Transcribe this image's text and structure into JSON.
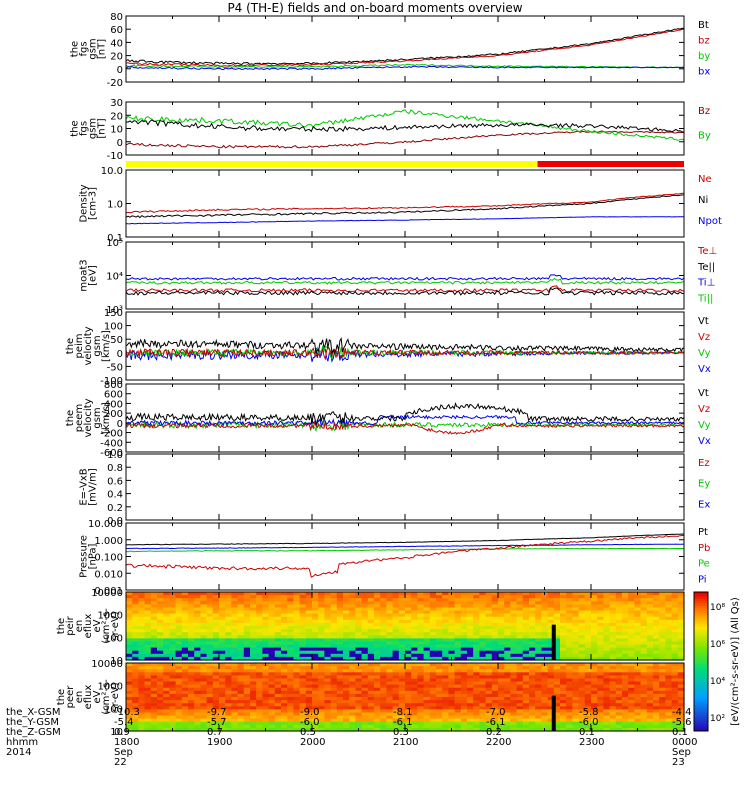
{
  "title": "P4 (TH-E) fields and on-board moments overview",
  "colors": {
    "black": "#000000",
    "red": "#cc0000",
    "green": "#00c800",
    "blue": "#0000ee",
    "yellow": "#ffff00",
    "darkred": "#8b0000"
  },
  "panels": [
    {
      "id": "fgs-dsl",
      "ylabel": [
        "the",
        "fgs",
        "gsm",
        "[nT]"
      ],
      "yticks": [
        "80",
        "60",
        "40",
        "20",
        "0",
        "-20"
      ],
      "ylim": [
        -20,
        80
      ],
      "scale": "linear",
      "legend": [
        {
          "text": "Bt",
          "color": "#000000"
        },
        {
          "text": "bz",
          "color": "#cc0000"
        },
        {
          "text": "by",
          "color": "#00c800"
        },
        {
          "text": "bx",
          "color": "#0000ee"
        }
      ]
    },
    {
      "id": "fgs-gsm",
      "ylabel": [
        "the",
        "fgs",
        "gsm",
        "[nT]"
      ],
      "yticks": [
        "30",
        "20",
        "10",
        "0",
        "-10"
      ],
      "ylim": [
        -15,
        30
      ],
      "scale": "linear",
      "legend": [
        {
          "text": "Bz",
          "color": "#8b0000"
        },
        {
          "text": "By",
          "color": "#00c800"
        }
      ]
    },
    {
      "id": "density",
      "ylabel": [
        "Density",
        "[cm-3]"
      ],
      "yticks": [
        "10.0",
        "1.0",
        "0.1"
      ],
      "ylim": [
        0.1,
        10
      ],
      "scale": "log",
      "legend": [
        {
          "text": "Ne",
          "color": "#cc0000"
        },
        {
          "text": "Ni",
          "color": "#000000"
        },
        {
          "text": "Npot",
          "color": "#0000ee"
        }
      ]
    },
    {
      "id": "temperature",
      "ylabel": [
        "moat3",
        "[eV]"
      ],
      "yticks": [
        "10⁵",
        "10⁴",
        "10³"
      ],
      "ylim": [
        500,
        100000
      ],
      "scale": "log",
      "legend": [
        {
          "text": "Te⊥",
          "color": "#cc0000"
        },
        {
          "text": "Te||",
          "color": "#000000"
        },
        {
          "text": "Ti⊥",
          "color": "#0000ee"
        },
        {
          "text": "Ti||",
          "color": "#00c800"
        }
      ]
    },
    {
      "id": "peim-velocity",
      "ylabel": [
        "the",
        "peim",
        "velocity",
        "gsm",
        "[km/s]"
      ],
      "yticks": [
        "150",
        "100",
        "50",
        "0",
        "-50",
        "-100"
      ],
      "ylim": [
        -100,
        150
      ],
      "scale": "linear",
      "legend": [
        {
          "text": "Vt",
          "color": "#000000"
        },
        {
          "text": "Vz",
          "color": "#cc0000"
        },
        {
          "text": "Vy",
          "color": "#00c800"
        },
        {
          "text": "Vx",
          "color": "#0000ee"
        }
      ]
    },
    {
      "id": "peem-velocity",
      "ylabel": [
        "the",
        "peem",
        "velocity",
        "gsm",
        "[km/s]"
      ],
      "yticks": [
        "800",
        "600",
        "400",
        "200",
        "0",
        "-200",
        "-400",
        "-600"
      ],
      "ylim": [
        -600,
        800
      ],
      "scale": "linear",
      "legend": [
        {
          "text": "Vt",
          "color": "#000000"
        },
        {
          "text": "Vz",
          "color": "#cc0000"
        },
        {
          "text": "Vy",
          "color": "#00c800"
        },
        {
          "text": "Vx",
          "color": "#0000ee"
        }
      ]
    },
    {
      "id": "efield",
      "ylabel": [
        "E=-VxB",
        "[mV/m]"
      ],
      "yticks": [
        "1.0",
        "0.8",
        "0.6",
        "0.4",
        "0.2",
        "0.0"
      ],
      "ylim": [
        0,
        1
      ],
      "scale": "linear",
      "legend": [
        {
          "text": "Ez",
          "color": "#cc0000"
        },
        {
          "text": "Ey",
          "color": "#00c800"
        },
        {
          "text": "Ex",
          "color": "#0000ee"
        }
      ]
    },
    {
      "id": "pressure",
      "ylabel": [
        "Pressure",
        "[nPa]"
      ],
      "yticks": [
        "10.000",
        "1.000",
        "0.100",
        "0.010",
        "0.001"
      ],
      "ylim": [
        0.001,
        10
      ],
      "scale": "log",
      "legend": [
        {
          "text": "Pt",
          "color": "#000000"
        },
        {
          "text": "Pb",
          "color": "#cc0000"
        },
        {
          "text": "Pe",
          "color": "#00c800"
        },
        {
          "text": "Pi",
          "color": "#0000ee"
        }
      ]
    },
    {
      "id": "peir-spec",
      "ylabel": [
        "the",
        "peir",
        "en",
        "eflux",
        "eV",
        "(cm²-s-",
        "sr-eV)"
      ],
      "yticks": [
        "10000",
        "1000",
        "100",
        "10"
      ],
      "ylim": [
        5,
        30000
      ],
      "scale": "log"
    },
    {
      "id": "peer-spec",
      "ylabel": [
        "the",
        "peer",
        "en",
        "eflux",
        "eV",
        "(cm²-s-",
        "sr-eV)"
      ],
      "yticks": [
        "10000",
        "1000",
        "100",
        "10"
      ],
      "ylim": [
        5,
        30000
      ],
      "scale": "log"
    }
  ],
  "colorbar": {
    "label": "[eV/(cm²-s-sr-eV)] (All Qs)",
    "ticks": [
      "10⁸",
      "10⁶",
      "10⁴",
      "10²"
    ]
  },
  "mode_bar": {
    "segments": [
      {
        "from": "1800",
        "to": "2243",
        "color": "#ffff00"
      },
      {
        "from": "2243",
        "to": "0000",
        "color": "#ee0000"
      }
    ]
  },
  "footer": {
    "rows": [
      {
        "label": "the_X-GSM",
        "values": [
          "-10.3",
          "-9.7",
          "-9.0",
          "-8.1",
          "-7.0",
          "-5.8",
          "-4.4"
        ]
      },
      {
        "label": "the_Y-GSM",
        "values": [
          "-5.4",
          "-5.7",
          "-6.0",
          "-6.1",
          "-6.1",
          "-6.0",
          "-5.6"
        ]
      },
      {
        "label": "the_Z-GSM",
        "values": [
          "0.9",
          "0.7",
          "0.5",
          "0.3",
          "0.2",
          "0.1",
          "0.1"
        ]
      },
      {
        "label": "hhmm",
        "values": [
          "1800",
          "1900",
          "2000",
          "2100",
          "2200",
          "2300",
          "0000"
        ]
      }
    ],
    "year": "2014",
    "dates": [
      "Sep 22",
      "Sep 23"
    ]
  },
  "chart_data": {
    "type": "line",
    "title": "P4 (TH-E) fields and on-board moments overview",
    "x": [
      "1800",
      "1900",
      "2000",
      "2100",
      "2200",
      "2300",
      "0000"
    ],
    "xlabel": "hhmm",
    "series": [
      {
        "name": "Bt",
        "values": [
          12,
          8,
          8,
          14,
          22,
          38,
          62
        ]
      },
      {
        "name": "bz",
        "values": [
          8,
          5,
          6,
          12,
          20,
          36,
          60
        ]
      },
      {
        "name": "by",
        "values": [
          5,
          3,
          3,
          6,
          4,
          3,
          2
        ]
      },
      {
        "name": "bx",
        "values": [
          2,
          0,
          0,
          3,
          2,
          2,
          2
        ]
      },
      {
        "name": "Bz",
        "values": [
          -6,
          -8,
          -8,
          -4,
          2,
          5,
          4
        ]
      },
      {
        "name": "By",
        "values": [
          16,
          14,
          10,
          22,
          14,
          5,
          -2
        ]
      },
      {
        "name": "Ne",
        "values": [
          0.55,
          0.65,
          0.7,
          0.75,
          0.85,
          1.1,
          2.0
        ]
      },
      {
        "name": "Ni",
        "values": [
          0.4,
          0.45,
          0.5,
          0.55,
          0.7,
          1.0,
          1.8
        ]
      },
      {
        "name": "Npot",
        "values": [
          0.25,
          0.27,
          0.3,
          0.32,
          0.35,
          0.4,
          0.4
        ]
      },
      {
        "name": "Pt",
        "values": [
          0.5,
          0.55,
          0.6,
          0.7,
          0.9,
          1.3,
          2.2
        ]
      },
      {
        "name": "Pb",
        "values": [
          0.03,
          0.02,
          0.02,
          0.08,
          0.3,
          0.8,
          1.8
        ]
      },
      {
        "name": "Pe",
        "values": [
          0.2,
          0.22,
          0.22,
          0.25,
          0.28,
          0.3,
          0.3
        ]
      },
      {
        "name": "Pi",
        "values": [
          0.3,
          0.32,
          0.35,
          0.4,
          0.45,
          0.5,
          0.55
        ]
      }
    ]
  }
}
